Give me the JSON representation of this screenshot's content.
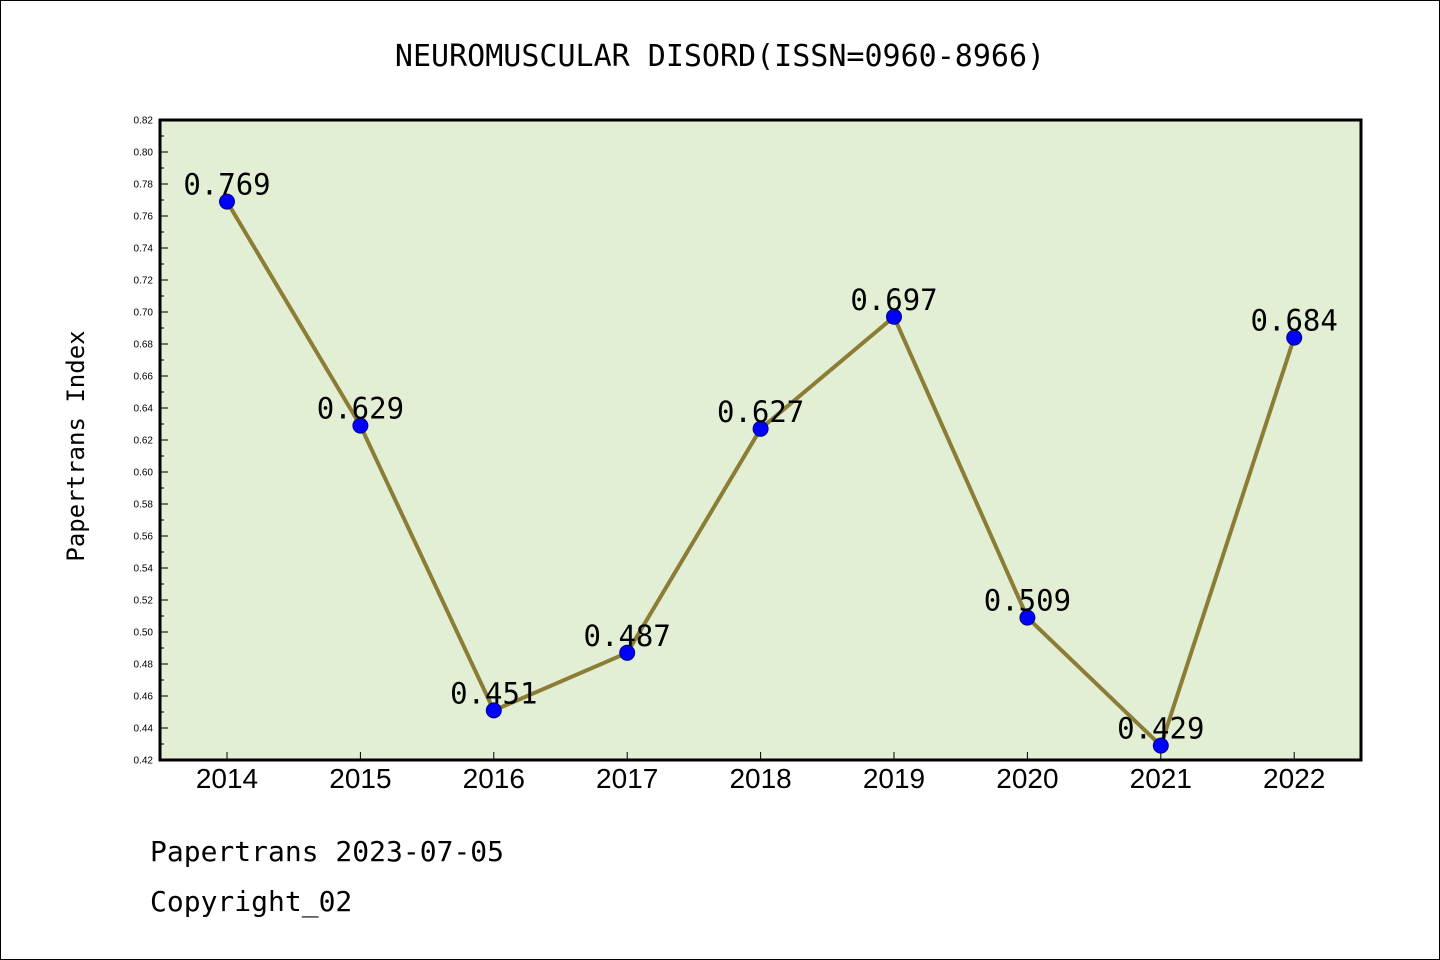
{
  "footer": {
    "line1": "Papertrans 2023-07-05",
    "line2": "Copyright_02"
  },
  "chart_data": {
    "type": "line",
    "title": "NEUROMUSCULAR DISORD(ISSN=0960-8966)",
    "xlabel": "",
    "ylabel": "Papertrans Index",
    "categories": [
      "2014",
      "2015",
      "2016",
      "2017",
      "2018",
      "2019",
      "2020",
      "2021",
      "2022"
    ],
    "values": [
      0.769,
      0.629,
      0.451,
      0.487,
      0.627,
      0.697,
      0.509,
      0.429,
      0.684
    ],
    "data_labels": [
      "0.769",
      "0.629",
      "0.451",
      "0.487",
      "0.627",
      "0.697",
      "0.509",
      "0.429",
      "0.684"
    ],
    "ylim": [
      0.42,
      0.82
    ],
    "ytick_step": 0.02,
    "grid": false,
    "colors": {
      "plot_background": "#e2efd5",
      "line": "#8b7d35",
      "marker": "#0000ff",
      "marker_edge": "#000080"
    }
  }
}
